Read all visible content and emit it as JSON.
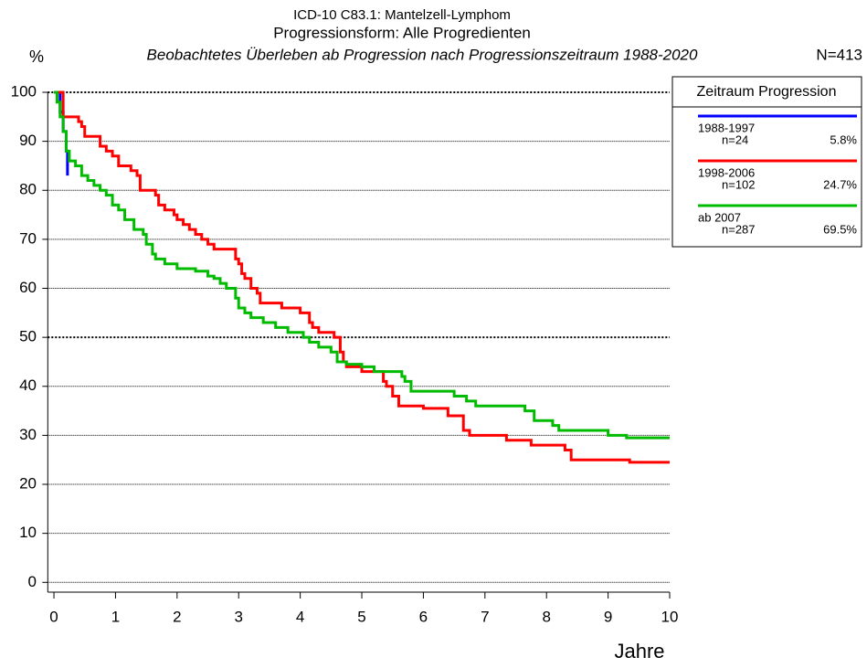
{
  "chart_data": {
    "type": "step",
    "title": "ICD-10 C83.1: Mantelzell-Lymphom",
    "subtitle": "Progressionsform: Alle Progredienten",
    "description": "Beobachtetes Überleben ab Progression nach Progressionszeitraum 1988-2020",
    "total_label": "N=413",
    "y_label": "%",
    "x_label": "Jahre",
    "legend_title": "Zeitraum Progression",
    "xlim": [
      -0.1,
      10
    ],
    "xticks": [
      0,
      1,
      2,
      3,
      4,
      5,
      6,
      7,
      8,
      9,
      10
    ],
    "ylim": [
      -2,
      100
    ],
    "yticks": [
      0,
      10,
      20,
      30,
      40,
      50,
      60,
      70,
      80,
      90,
      100
    ],
    "grid": true,
    "emphasized_yticks": [
      50,
      100
    ],
    "series": [
      {
        "name": "1988-1997",
        "n_label": "n=24",
        "share_label": "5.8%",
        "color": "#0000ff",
        "x": [
          0,
          0.1,
          0.15,
          0.2,
          0.22
        ],
        "values": [
          100,
          96,
          92,
          88,
          83
        ]
      },
      {
        "name": "1998-2006",
        "n_label": "n=102",
        "share_label": "24.7%",
        "color": "#ff0000",
        "x": [
          0,
          0.15,
          0.4,
          0.45,
          0.5,
          0.75,
          0.85,
          0.95,
          1.05,
          1.25,
          1.35,
          1.4,
          1.65,
          1.7,
          1.8,
          1.95,
          2.0,
          2.1,
          2.2,
          2.3,
          2.4,
          2.5,
          2.6,
          2.95,
          3.0,
          3.05,
          3.1,
          3.2,
          3.3,
          3.35,
          3.7,
          4.0,
          4.15,
          4.2,
          4.3,
          4.55,
          4.65,
          4.7,
          4.75,
          5.0,
          5.35,
          5.4,
          5.5,
          5.6,
          6.0,
          6.4,
          6.65,
          6.75,
          7.35,
          7.75,
          8.3,
          8.4,
          9.35,
          10
        ],
        "values": [
          100,
          95,
          94,
          93,
          91,
          89,
          88,
          87,
          85,
          84,
          83,
          80,
          79,
          77,
          76,
          75,
          74,
          73,
          72,
          71,
          70,
          69,
          68,
          66,
          65,
          63,
          62,
          60,
          59,
          57,
          56,
          55,
          53,
          52,
          51,
          50,
          47,
          45,
          44,
          43,
          41,
          40,
          38,
          36,
          35.5,
          34,
          31,
          30,
          29,
          28,
          27,
          25,
          24.5,
          24.5
        ]
      },
      {
        "name": "ab 2007",
        "n_label": "n=287",
        "share_label": "69.5%",
        "color": "#00bb00",
        "x": [
          0,
          0.05,
          0.1,
          0.15,
          0.2,
          0.25,
          0.35,
          0.45,
          0.55,
          0.65,
          0.75,
          0.85,
          0.95,
          1.05,
          1.15,
          1.3,
          1.45,
          1.5,
          1.6,
          1.65,
          1.8,
          2.0,
          2.3,
          2.5,
          2.6,
          2.7,
          2.8,
          2.95,
          3.0,
          3.1,
          3.2,
          3.4,
          3.6,
          3.8,
          4.05,
          4.15,
          4.3,
          4.5,
          4.6,
          4.75,
          5.0,
          5.2,
          5.65,
          5.7,
          5.8,
          6.5,
          6.7,
          6.85,
          7.65,
          7.8,
          8.1,
          8.2,
          9.0,
          9.3,
          10
        ],
        "values": [
          100,
          98,
          95,
          92,
          88,
          86,
          85,
          83,
          82,
          81,
          80,
          79,
          77,
          76,
          74,
          72,
          71,
          69,
          67,
          66,
          65,
          64,
          63.5,
          62.5,
          62,
          61,
          60,
          58,
          56,
          55,
          54,
          53,
          52,
          51,
          50,
          49,
          48,
          47,
          45,
          44.5,
          44,
          43,
          42,
          41,
          39,
          38,
          37,
          36,
          35,
          33,
          32,
          31,
          30,
          29.5,
          29.5
        ]
      }
    ]
  }
}
